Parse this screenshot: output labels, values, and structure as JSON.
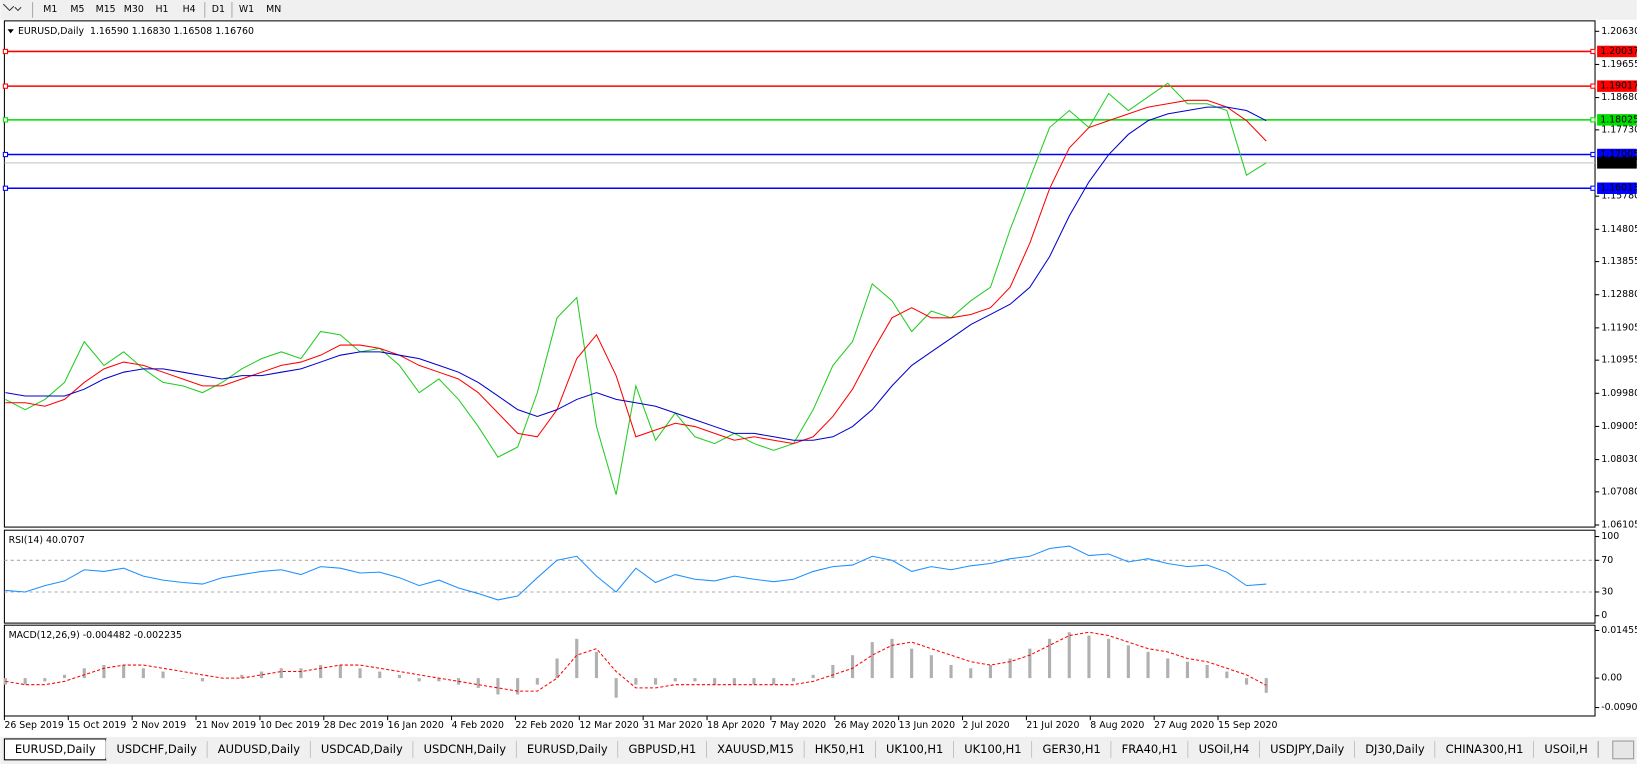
{
  "toolbar": {
    "timeframes": [
      "M1",
      "M5",
      "M15",
      "M30",
      "H1",
      "H4",
      "D1",
      "W1",
      "MN"
    ]
  },
  "time_axis": {
    "labels": [
      "26 Sep 2019",
      "15 Oct 2019",
      "2 Nov 2019",
      "21 Nov 2019",
      "10 Dec 2019",
      "28 Dec 2019",
      "16 Jan 2020",
      "4 Feb 2020",
      "22 Feb 2020",
      "12 Mar 2020",
      "31 Mar 2020",
      "18 Apr 2020",
      "7 May 2020",
      "26 May 2020",
      "13 Jun 2020",
      "2 Jul 2020",
      "21 Jul 2020",
      "8 Aug 2020",
      "27 Aug 2020",
      "15 Sep 2020"
    ]
  },
  "chart_data": [
    {
      "type": "line",
      "title": "EURUSD,Daily",
      "subtitle": "1.16590 1.16830 1.16508 1.16760",
      "ylim": [
        1.06044,
        1.20937
      ],
      "yticks": [
        {
          "value": 1.2063,
          "label": "1.20630"
        },
        1.19655,
        {
          "value": 1.1868,
          "label": "1.18680"
        },
        {
          "value": 1.1773,
          "label": "1.17730"
        },
        {
          "value": 1.1578,
          "label": "1.15780"
        },
        1.14805,
        1.13855,
        {
          "value": 1.1288,
          "label": "1.12880"
        },
        1.11905,
        1.10955,
        {
          "value": 1.0998,
          "label": "1.09980"
        },
        1.09005,
        {
          "value": 1.0803,
          "label": "1.08030"
        },
        {
          "value": 1.0708,
          "label": "1.07080"
        },
        1.06105
      ],
      "levels": [
        {
          "value": 1.20037,
          "color": "#ff0000"
        },
        {
          "value": 1.19017,
          "color": "#ff0000"
        },
        {
          "value": 1.18025,
          "color": "#00dd00"
        },
        {
          "value": 1.17005,
          "color": "#0000ff"
        },
        {
          "value": 1.16013,
          "color": "#0000ff"
        }
      ],
      "current": {
        "value": 1.1676,
        "label": "1.16760",
        "color": "#c0c0c0"
      },
      "series": [
        {
          "color": "#22cc22",
          "style": "line",
          "values": [
            1.098,
            1.095,
            1.098,
            1.103,
            1.115,
            1.108,
            1.112,
            1.107,
            1.103,
            1.102,
            1.1,
            1.103,
            1.107,
            1.11,
            1.112,
            1.11,
            1.118,
            1.117,
            1.112,
            1.113,
            1.108,
            1.1,
            1.104,
            1.098,
            1.09,
            1.081,
            1.084,
            1.1,
            1.122,
            1.128,
            1.09,
            1.07,
            1.102,
            1.086,
            1.094,
            1.087,
            1.085,
            1.088,
            1.085,
            1.083,
            1.085,
            1.095,
            1.108,
            1.115,
            1.132,
            1.127,
            1.118,
            1.124,
            1.122,
            1.127,
            1.131,
            1.148,
            1.163,
            1.178,
            1.183,
            1.178,
            1.188,
            1.183,
            1.187,
            1.191,
            1.185,
            1.185,
            1.183,
            1.164,
            1.1676
          ]
        },
        {
          "color": "#ff0000",
          "style": "line",
          "values": [
            1.097,
            1.097,
            1.096,
            1.098,
            1.103,
            1.107,
            1.109,
            1.108,
            1.106,
            1.104,
            1.102,
            1.102,
            1.104,
            1.106,
            1.108,
            1.109,
            1.111,
            1.114,
            1.114,
            1.113,
            1.111,
            1.108,
            1.106,
            1.104,
            1.1,
            1.094,
            1.088,
            1.087,
            1.095,
            1.11,
            1.117,
            1.105,
            1.087,
            1.089,
            1.091,
            1.09,
            1.088,
            1.086,
            1.087,
            1.086,
            1.085,
            1.087,
            1.093,
            1.101,
            1.112,
            1.122,
            1.125,
            1.122,
            1.122,
            1.123,
            1.125,
            1.131,
            1.144,
            1.16,
            1.172,
            1.178,
            1.18,
            1.182,
            1.184,
            1.185,
            1.186,
            1.186,
            1.184,
            1.18,
            1.174
          ]
        },
        {
          "color": "#0000cc",
          "style": "line",
          "values": [
            1.1,
            1.099,
            1.099,
            1.099,
            1.101,
            1.104,
            1.106,
            1.107,
            1.107,
            1.106,
            1.105,
            1.104,
            1.105,
            1.105,
            1.106,
            1.107,
            1.109,
            1.111,
            1.112,
            1.112,
            1.111,
            1.11,
            1.108,
            1.106,
            1.103,
            1.099,
            1.095,
            1.093,
            1.095,
            1.098,
            1.1,
            1.098,
            1.097,
            1.096,
            1.094,
            1.092,
            1.09,
            1.088,
            1.088,
            1.087,
            1.086,
            1.086,
            1.087,
            1.09,
            1.095,
            1.102,
            1.108,
            1.112,
            1.116,
            1.12,
            1.123,
            1.126,
            1.131,
            1.14,
            1.152,
            1.162,
            1.17,
            1.176,
            1.18,
            1.182,
            1.183,
            1.184,
            1.184,
            1.183,
            1.18
          ]
        }
      ]
    },
    {
      "type": "line",
      "title": "RSI(14) 40.0707",
      "ylim": [
        -9.3,
        108
      ],
      "yticks": [
        100,
        70,
        30,
        0
      ],
      "levels": [
        70,
        30
      ],
      "series": [
        {
          "color": "#1e90ff",
          "style": "line",
          "values": [
            32,
            30,
            38,
            44,
            58,
            56,
            60,
            50,
            45,
            42,
            40,
            48,
            52,
            56,
            58,
            52,
            62,
            60,
            54,
            55,
            48,
            38,
            45,
            35,
            28,
            20,
            25,
            48,
            70,
            75,
            50,
            30,
            60,
            42,
            52,
            46,
            44,
            50,
            46,
            43,
            46,
            56,
            62,
            64,
            75,
            70,
            56,
            62,
            58,
            63,
            66,
            72,
            75,
            85,
            88,
            76,
            78,
            68,
            72,
            66,
            62,
            64,
            55,
            38,
            40
          ]
        }
      ]
    },
    {
      "type": "bar",
      "title": "MACD(12,26,9) -0.004482 -0.002235",
      "ylim": [
        -0.01158,
        0.01617
      ],
      "yticks": [
        0.014556,
        {
          "value": 0,
          "label": "0.00"
        },
        {
          "value": -0.009,
          "label": "-0.0090"
        }
      ],
      "series": [
        {
          "color": "#b0b0b0",
          "style": "histogram",
          "values": [
            -0.002,
            -0.002,
            -0.001,
            0.001,
            0.003,
            0.004,
            0.004,
            0.003,
            0.002,
            0,
            -0.001,
            0,
            0.001,
            0.002,
            0.003,
            0.003,
            0.004,
            0.004,
            0.003,
            0.002,
            0.001,
            -0.001,
            -0.001,
            -0.002,
            -0.003,
            -0.005,
            -0.005,
            -0.002,
            0.006,
            0.012,
            0.008,
            -0.006,
            -0.002,
            -0.002,
            -0.001,
            -0.001,
            -0.002,
            -0.002,
            -0.002,
            -0.002,
            -0.001,
            0.001,
            0.004,
            0.007,
            0.011,
            0.012,
            0.009,
            0.007,
            0.004,
            0.003,
            0.004,
            0.006,
            0.009,
            0.012,
            0.014,
            0.013,
            0.012,
            0.01,
            0.008,
            0.006,
            0.005,
            0.004,
            0.002,
            -0.002,
            -0.0045
          ]
        },
        {
          "color": "#ff0000",
          "style": "dashed",
          "values": [
            -0.001,
            -0.002,
            -0.002,
            -0.001,
            0.001,
            0.003,
            0.004,
            0.004,
            0.003,
            0.002,
            0.001,
            0,
            0,
            0.001,
            0.002,
            0.002,
            0.003,
            0.004,
            0.004,
            0.003,
            0.002,
            0.001,
            0,
            -0.001,
            -0.002,
            -0.003,
            -0.004,
            -0.004,
            0,
            0.007,
            0.009,
            0.002,
            -0.003,
            -0.003,
            -0.002,
            -0.002,
            -0.002,
            -0.002,
            -0.002,
            -0.002,
            -0.002,
            -0.001,
            0.001,
            0.003,
            0.007,
            0.01,
            0.011,
            0.009,
            0.007,
            0.005,
            0.004,
            0.005,
            0.007,
            0.01,
            0.013,
            0.014,
            0.013,
            0.011,
            0.009,
            0.008,
            0.006,
            0.005,
            0.003,
            0.001,
            -0.0022
          ]
        }
      ]
    }
  ],
  "tabs": {
    "active": 0,
    "items": [
      "EURUSD,Daily",
      "USDCHF,Daily",
      "AUDUSD,Daily",
      "USDCAD,Daily",
      "USDCNH,Daily",
      "EURUSD,Daily",
      "GBPUSD,H1",
      "XAUUSD,M15",
      "HK50,H1",
      "UK100,H1",
      "UK100,H1",
      "GER30,H1",
      "FRA40,H1",
      "USOil,H4",
      "USDJPY,Daily",
      "DJ30,Daily",
      "CHINA300,H1",
      "USOil,H"
    ]
  }
}
